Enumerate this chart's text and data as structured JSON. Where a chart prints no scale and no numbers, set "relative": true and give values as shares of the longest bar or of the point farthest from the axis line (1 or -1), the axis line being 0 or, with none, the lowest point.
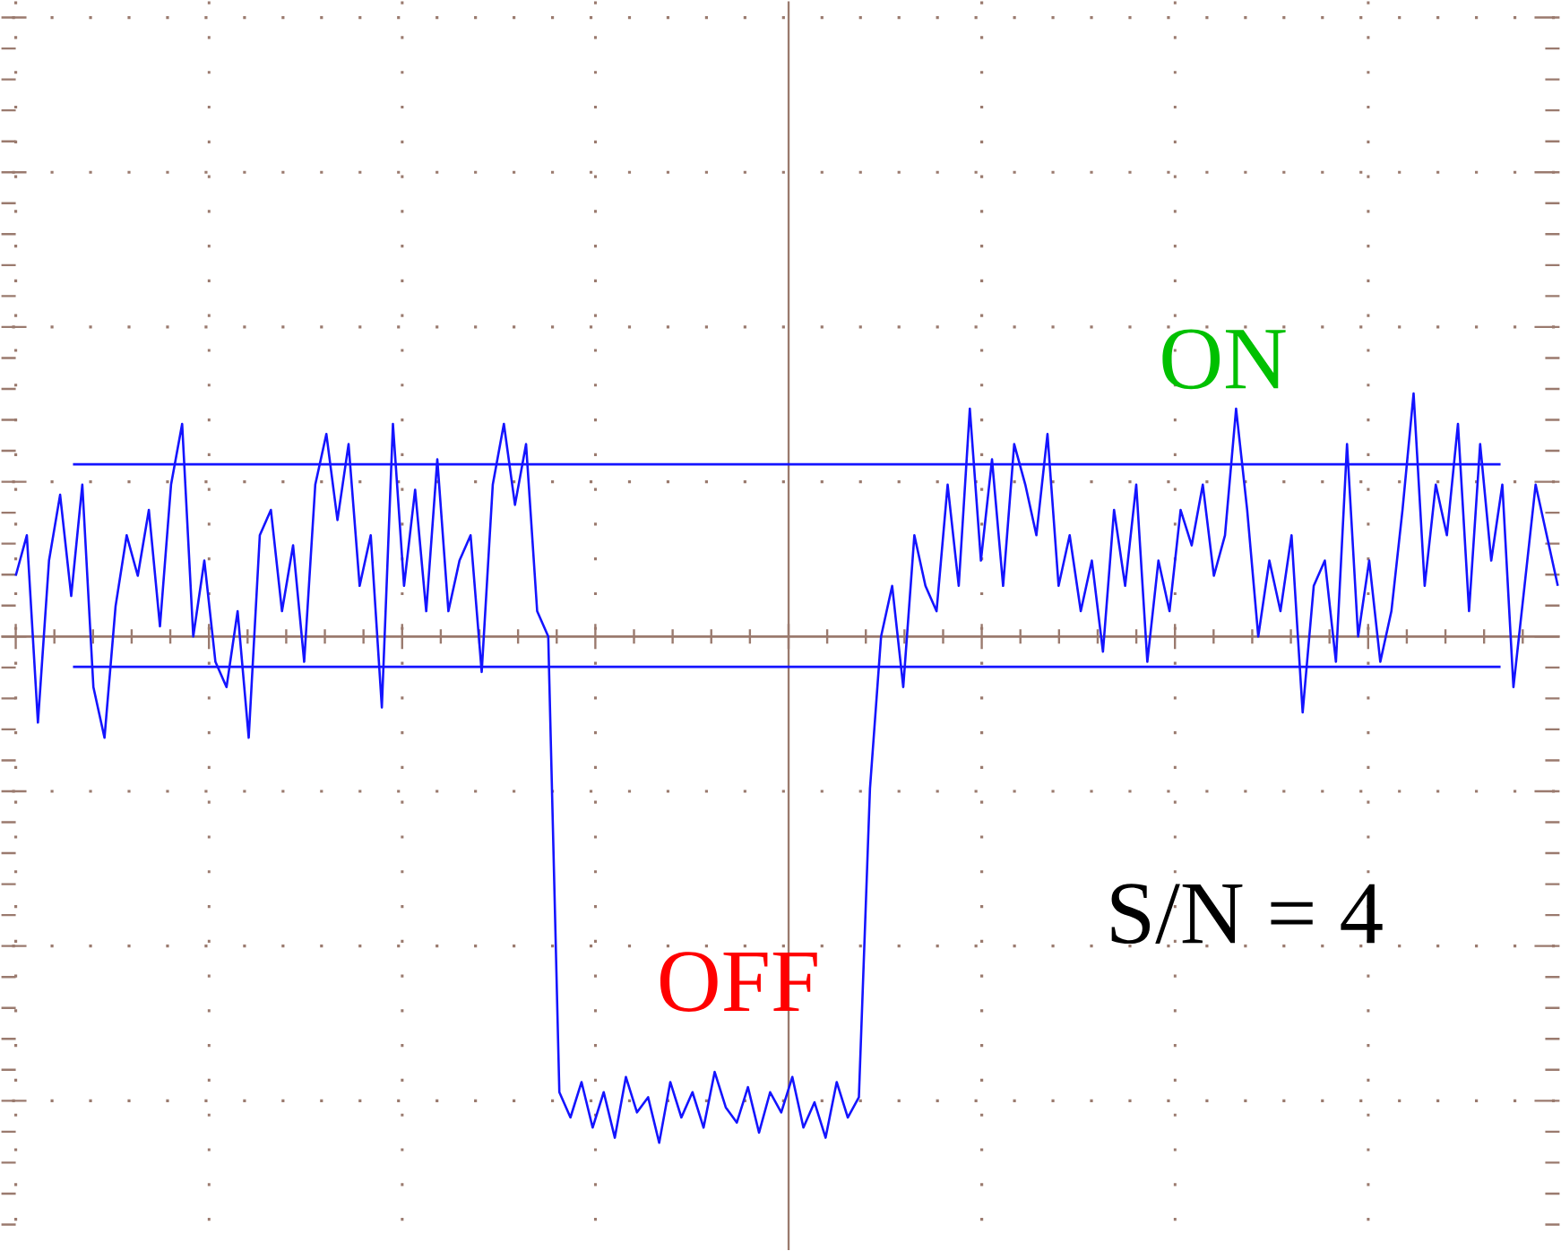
{
  "chart_data": {
    "type": "line",
    "relative": true,
    "grid": true,
    "color": "#1414ff",
    "values": [
      0.12,
      0.2,
      -0.17,
      0.15,
      0.28,
      0.08,
      0.3,
      -0.1,
      -0.2,
      0.06,
      0.2,
      0.12,
      0.25,
      0.02,
      0.3,
      0.42,
      0.0,
      0.15,
      -0.05,
      -0.1,
      0.05,
      -0.2,
      0.2,
      0.25,
      0.05,
      0.18,
      -0.05,
      0.3,
      0.4,
      0.23,
      0.38,
      0.1,
      0.2,
      -0.14,
      0.42,
      0.1,
      0.29,
      0.05,
      0.35,
      0.05,
      0.15,
      0.2,
      -0.07,
      0.3,
      0.42,
      0.26,
      0.38,
      0.05,
      0.0,
      -0.9,
      -0.95,
      -0.88,
      -0.97,
      -0.9,
      -0.99,
      -0.87,
      -0.94,
      -0.91,
      -1.0,
      -0.88,
      -0.95,
      -0.9,
      -0.97,
      -0.86,
      -0.93,
      -0.96,
      -0.89,
      -0.98,
      -0.9,
      -0.94,
      -0.87,
      -0.97,
      -0.92,
      -0.99,
      -0.88,
      -0.95,
      -0.91,
      -0.3,
      0.0,
      0.1,
      -0.1,
      0.2,
      0.1,
      0.05,
      0.3,
      0.1,
      0.45,
      0.15,
      0.35,
      0.1,
      0.38,
      0.3,
      0.2,
      0.4,
      0.1,
      0.2,
      0.05,
      0.15,
      -0.03,
      0.25,
      0.1,
      0.3,
      -0.05,
      0.15,
      0.05,
      0.25,
      0.18,
      0.3,
      0.12,
      0.2,
      0.45,
      0.25,
      0.0,
      0.15,
      0.05,
      0.2,
      -0.15,
      0.1,
      0.15,
      -0.05,
      0.38,
      0.0,
      0.15,
      -0.05,
      0.05,
      0.25,
      0.48,
      0.1,
      0.3,
      0.2,
      0.42,
      0.05,
      0.38,
      0.15,
      0.3,
      -0.1,
      0.1,
      0.3,
      0.2,
      0.1
    ],
    "ref_lines": [
      {
        "axis": "y",
        "value": 0,
        "color": "#9a7a6e"
      },
      {
        "axis": "y",
        "value": 0.34,
        "color": "#1414ff"
      },
      {
        "axis": "y",
        "value": -0.06,
        "color": "#1414ff"
      }
    ],
    "annotations": [
      "ON",
      "OFF",
      "S/N = 4"
    ]
  }
}
